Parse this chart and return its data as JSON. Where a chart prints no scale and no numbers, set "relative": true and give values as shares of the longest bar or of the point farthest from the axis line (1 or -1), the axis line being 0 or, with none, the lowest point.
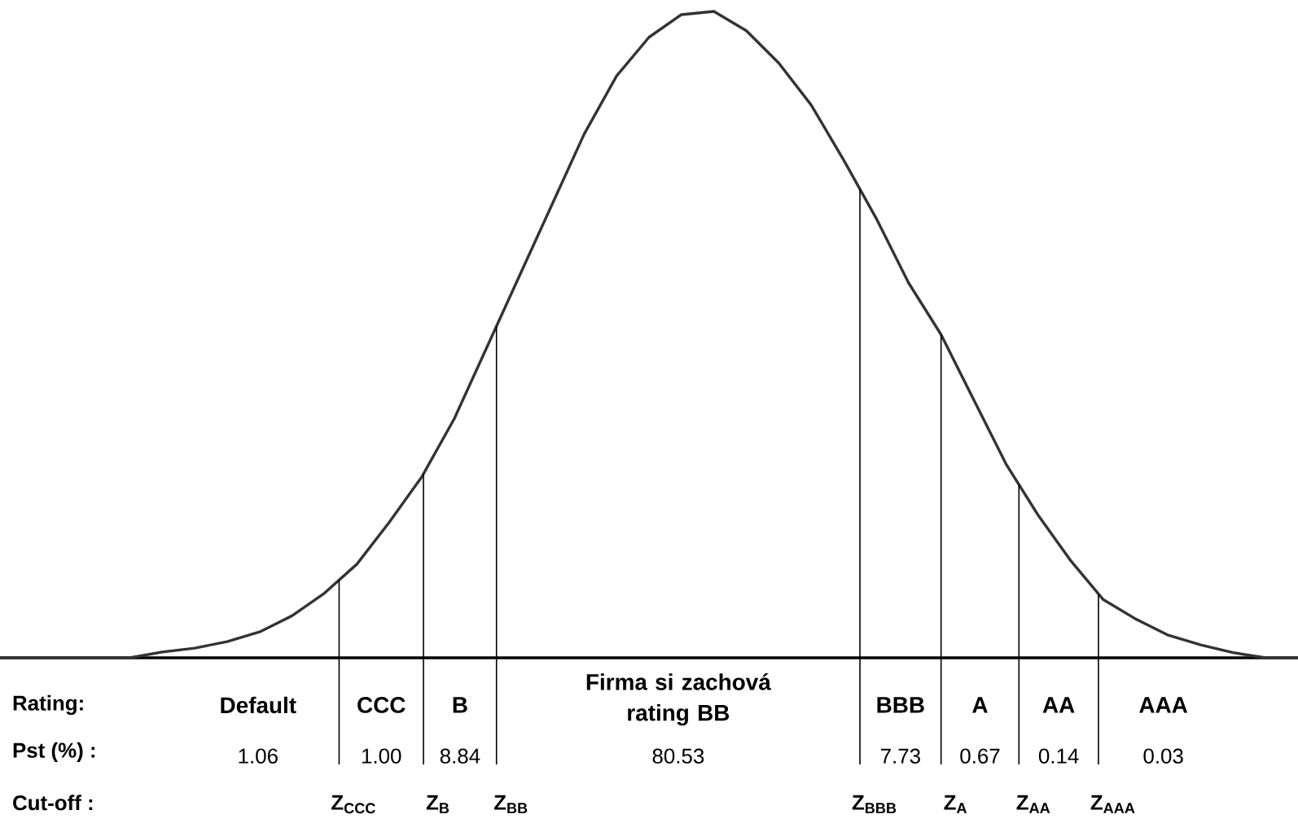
{
  "chart_data": {
    "type": "line",
    "relative": true,
    "color": "#333333",
    "categories": [
      null,
      null,
      null,
      null,
      null,
      null,
      null,
      null,
      null,
      null,
      null,
      null,
      null,
      null,
      null,
      null,
      null,
      null,
      null,
      null,
      null,
      null,
      null,
      null,
      null,
      null,
      null,
      null,
      null,
      null,
      null,
      null,
      null,
      null,
      null,
      null,
      null,
      null,
      null,
      null,
      null
    ],
    "values": [
      0,
      0,
      0,
      0,
      0,
      0.009,
      0.015,
      0.025,
      0.04,
      0.065,
      0.1,
      0.145,
      0.21,
      0.28,
      0.37,
      0.48,
      0.59,
      0.7,
      0.81,
      0.9,
      0.96,
      0.995,
      1,
      0.97,
      0.92,
      0.855,
      0.77,
      0.68,
      0.58,
      0.5,
      0.4,
      0.3,
      0.22,
      0.15,
      0.09,
      0.06,
      0.035,
      0.02,
      0.008,
      0,
      0
    ],
    "annotations": [
      "Rating:",
      "Pst (%) :",
      "Cut-off :",
      "Default",
      "CCC",
      "B",
      "Firma si zachová rating BB",
      "BBB",
      "A",
      "AA",
      "AAA",
      "1.06",
      "1.00",
      "8.84",
      "80.53",
      "7.73",
      "0.67",
      "0.14",
      "0.03",
      "Z$_{CCC}$",
      "Z$_{B}$",
      "Z$_{BB}$",
      "Z$_{BBB}$",
      "Z$_{A}$",
      "Z$_{AA}$",
      "Z$_{AAA}$"
    ]
  }
}
